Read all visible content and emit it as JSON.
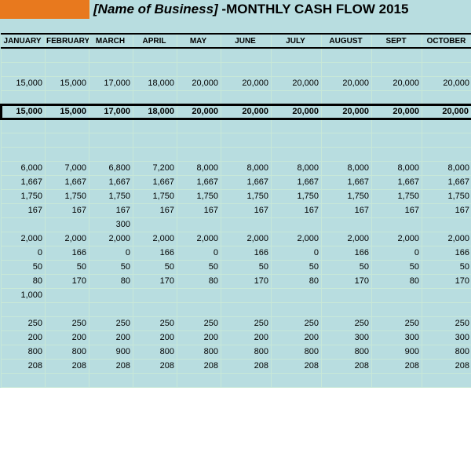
{
  "title": {
    "business_placeholder": "[Name of Business]",
    "separator": " -",
    "heading": "MONTHLY CASH FLOW 2015"
  },
  "colors": {
    "orange": "#e8791e",
    "cell_bg": "#b8dde0",
    "grid": "#c8e8d8",
    "black": "#000000"
  },
  "columns": [
    "JANUARY",
    "FEBRUARY",
    "MARCH",
    "APRIL",
    "MAY",
    "JUNE",
    "JULY",
    "AUGUST",
    "SEPT",
    "OCTOBER"
  ],
  "rows": [
    {
      "type": "blank"
    },
    {
      "type": "blank"
    },
    {
      "type": "data",
      "values": [
        "15,000",
        "15,000",
        "17,000",
        "18,000",
        "20,000",
        "20,000",
        "20,000",
        "20,000",
        "20,000",
        "20,000"
      ]
    },
    {
      "type": "blank"
    },
    {
      "type": "thick",
      "values": [
        "15,000",
        "15,000",
        "17,000",
        "18,000",
        "20,000",
        "20,000",
        "20,000",
        "20,000",
        "20,000",
        "20,000"
      ]
    },
    {
      "type": "blank"
    },
    {
      "type": "blank"
    },
    {
      "type": "blank"
    },
    {
      "type": "data",
      "values": [
        "6,000",
        "7,000",
        "6,800",
        "7,200",
        "8,000",
        "8,000",
        "8,000",
        "8,000",
        "8,000",
        "8,000"
      ]
    },
    {
      "type": "data",
      "values": [
        "1,667",
        "1,667",
        "1,667",
        "1,667",
        "1,667",
        "1,667",
        "1,667",
        "1,667",
        "1,667",
        "1,667"
      ]
    },
    {
      "type": "data",
      "values": [
        "1,750",
        "1,750",
        "1,750",
        "1,750",
        "1,750",
        "1,750",
        "1,750",
        "1,750",
        "1,750",
        "1,750"
      ]
    },
    {
      "type": "data",
      "values": [
        "167",
        "167",
        "167",
        "167",
        "167",
        "167",
        "167",
        "167",
        "167",
        "167"
      ]
    },
    {
      "type": "data",
      "values": [
        "",
        "",
        "300",
        "",
        "",
        "",
        "",
        "",
        "",
        ""
      ]
    },
    {
      "type": "data",
      "values": [
        "2,000",
        "2,000",
        "2,000",
        "2,000",
        "2,000",
        "2,000",
        "2,000",
        "2,000",
        "2,000",
        "2,000"
      ]
    },
    {
      "type": "data",
      "values": [
        "0",
        "166",
        "0",
        "166",
        "0",
        "166",
        "0",
        "166",
        "0",
        "166"
      ]
    },
    {
      "type": "data",
      "values": [
        "50",
        "50",
        "50",
        "50",
        "50",
        "50",
        "50",
        "50",
        "50",
        "50"
      ]
    },
    {
      "type": "data",
      "values": [
        "80",
        "170",
        "80",
        "170",
        "80",
        "170",
        "80",
        "170",
        "80",
        "170"
      ]
    },
    {
      "type": "data",
      "values": [
        "1,000",
        "",
        "",
        "",
        "",
        "",
        "",
        "",
        "",
        ""
      ]
    },
    {
      "type": "blank"
    },
    {
      "type": "data",
      "values": [
        "250",
        "250",
        "250",
        "250",
        "250",
        "250",
        "250",
        "250",
        "250",
        "250"
      ]
    },
    {
      "type": "data",
      "values": [
        "200",
        "200",
        "200",
        "200",
        "200",
        "200",
        "200",
        "300",
        "300",
        "300"
      ]
    },
    {
      "type": "data",
      "values": [
        "800",
        "800",
        "900",
        "800",
        "800",
        "800",
        "800",
        "800",
        "900",
        "800"
      ]
    },
    {
      "type": "data",
      "values": [
        "208",
        "208",
        "208",
        "208",
        "208",
        "208",
        "208",
        "208",
        "208",
        "208"
      ]
    },
    {
      "type": "blank"
    }
  ]
}
